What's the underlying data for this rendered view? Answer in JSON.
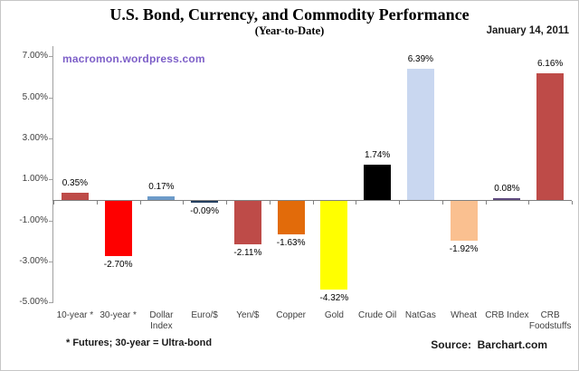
{
  "date": "January 14, 2011",
  "watermark": "macromon.wordpress.com",
  "footnote": "* Futures; 30-year = Ultra-bond",
  "source": {
    "label": "Source:",
    "value": "Barchart.com"
  },
  "colors": {
    "watermark": "#7d5fc8",
    "axis_line": "#a0a0a0",
    "zero_line": "#808080",
    "tick_text": "#404040",
    "value_text": "#000000"
  },
  "chart_data": {
    "type": "bar",
    "title": "U.S. Bond, Currency, and Commodity Performance",
    "subtitle": "(Year-to-Date)",
    "categories": [
      "10-year *",
      "30-year *",
      "Dollar Index",
      "Euro/$",
      "Yen/$",
      "Copper",
      "Gold",
      "Crude Oil",
      "NatGas",
      "Wheat",
      "CRB Index",
      "CRB Foodstuffs"
    ],
    "values": [
      0.35,
      -2.7,
      0.17,
      -0.09,
      -2.11,
      -1.63,
      -4.32,
      1.74,
      6.39,
      -1.92,
      0.08,
      6.16
    ],
    "value_labels": [
      "0.35%",
      "-2.70%",
      "0.17%",
      "-0.09%",
      "-2.11%",
      "-1.63%",
      "-4.32%",
      "1.74%",
      "6.39%",
      "-1.92%",
      "0.08%",
      "6.16%"
    ],
    "bar_colors": [
      "#BE4B48",
      "#FE0000",
      "#6D9BC9",
      "#243F60",
      "#BE4B48",
      "#E26B0A",
      "#FFFF00",
      "#000000",
      "#C9D7F0",
      "#FAC090",
      "#5F4A7E",
      "#BE4B48"
    ],
    "xlabel": "",
    "ylabel": "",
    "ylim": [
      -5,
      7
    ],
    "yticks": [
      7,
      5,
      3,
      1,
      -1,
      -3,
      -5
    ],
    "ytick_labels": [
      "7.00%",
      "5.00%",
      "3.00%",
      "1.00%",
      "-1.00%",
      "-3.00%",
      "-5.00%"
    ],
    "grid": false,
    "legend": false
  }
}
